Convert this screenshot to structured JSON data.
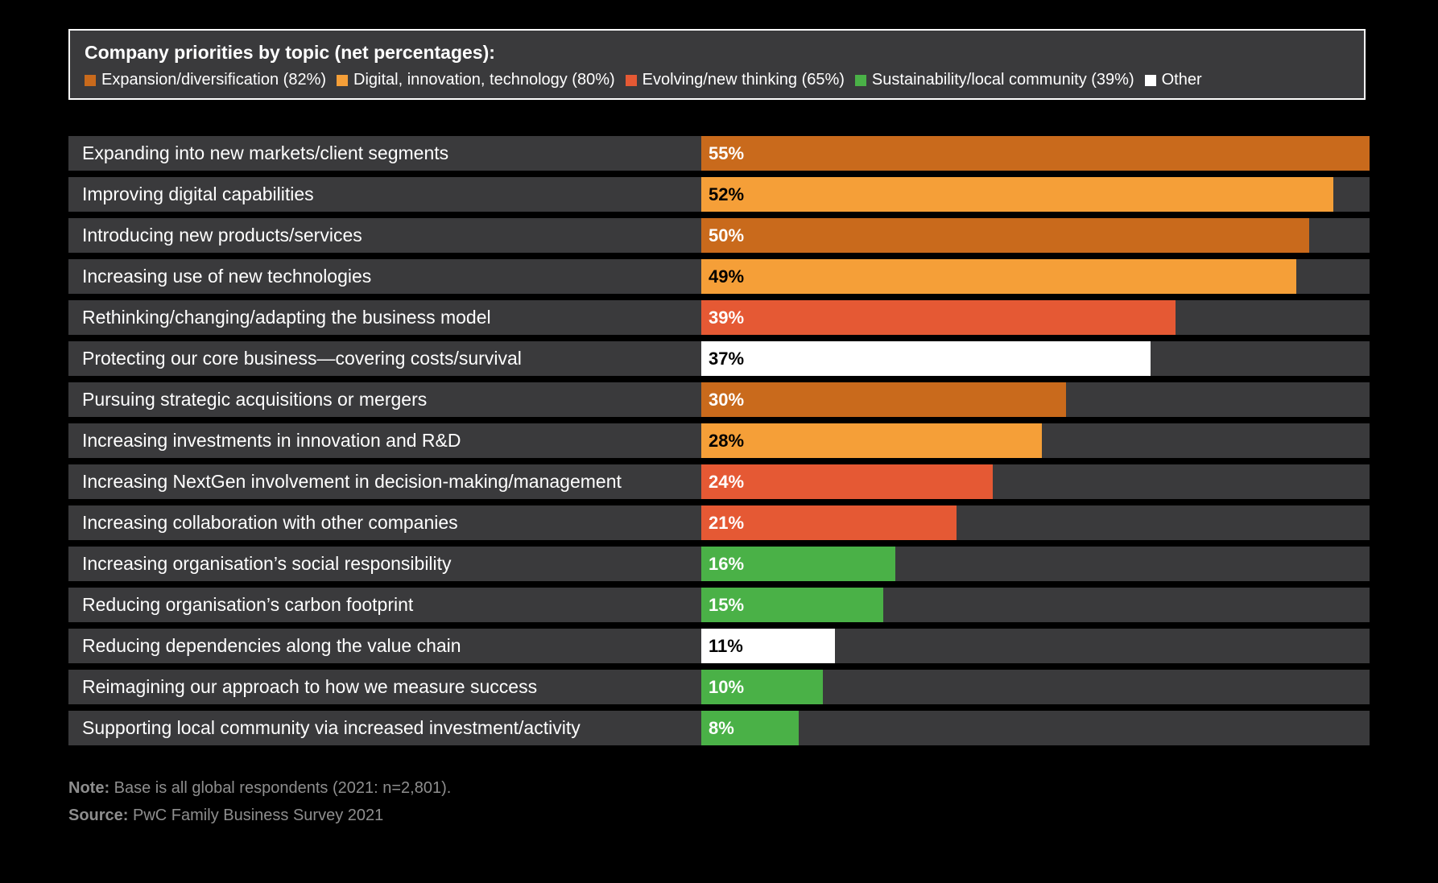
{
  "colors": {
    "expansion": "#c96a1c",
    "digital": "#f59f38",
    "evolving": "#e55934",
    "sustainability": "#4ab147",
    "other": "#ffffff",
    "row_bg": "#3a3a3c"
  },
  "legend": {
    "title": "Company priorities by topic (net percentages):",
    "items": [
      {
        "label": "Expansion/diversification (82%)",
        "color": "#c96a1c"
      },
      {
        "label": "Digital, innovation, technology (80%)",
        "color": "#f59f38"
      },
      {
        "label": "Evolving/new thinking (65%)",
        "color": "#e55934"
      },
      {
        "label": "Sustainability/local community (39%)",
        "color": "#4ab147"
      },
      {
        "label": "Other",
        "color": "#ffffff"
      }
    ]
  },
  "chart_data": {
    "type": "bar",
    "orientation": "horizontal",
    "xlim": [
      0,
      55
    ],
    "categories": [
      "Expanding into new markets/client segments",
      "Improving digital capabilities",
      "Introducing new products/services",
      "Increasing use of new technologies",
      "Rethinking/changing/adapting the business model",
      "Protecting our core business—covering costs/survival",
      "Pursuing strategic acquisitions or mergers",
      "Increasing investments in innovation and R&D",
      "Increasing NextGen involvement in decision-making/management",
      "Increasing collaboration with other companies",
      "Increasing organisation’s social responsibility",
      "Reducing organisation’s carbon footprint",
      "Reducing dependencies along the value chain",
      "Reimagining our approach to how we measure success",
      "Supporting local community via increased investment/activity"
    ],
    "values": [
      55,
      52,
      50,
      49,
      39,
      37,
      30,
      28,
      24,
      21,
      16,
      15,
      11,
      10,
      8
    ],
    "value_labels": [
      "55%",
      "52%",
      "50%",
      "49%",
      "39%",
      "37%",
      "30%",
      "28%",
      "24%",
      "21%",
      "16%",
      "15%",
      "11%",
      "10%",
      "8%"
    ],
    "topics": [
      "expansion",
      "digital",
      "expansion",
      "digital",
      "evolving",
      "other",
      "expansion",
      "digital",
      "evolving",
      "evolving",
      "sustainability",
      "sustainability",
      "other",
      "sustainability",
      "sustainability"
    ]
  },
  "footer": {
    "note_label": "Note:",
    "note_text": " Base is all global respondents (2021: n=2,801).",
    "source_label": "Source:",
    "source_text": " PwC Family Business Survey 2021"
  }
}
